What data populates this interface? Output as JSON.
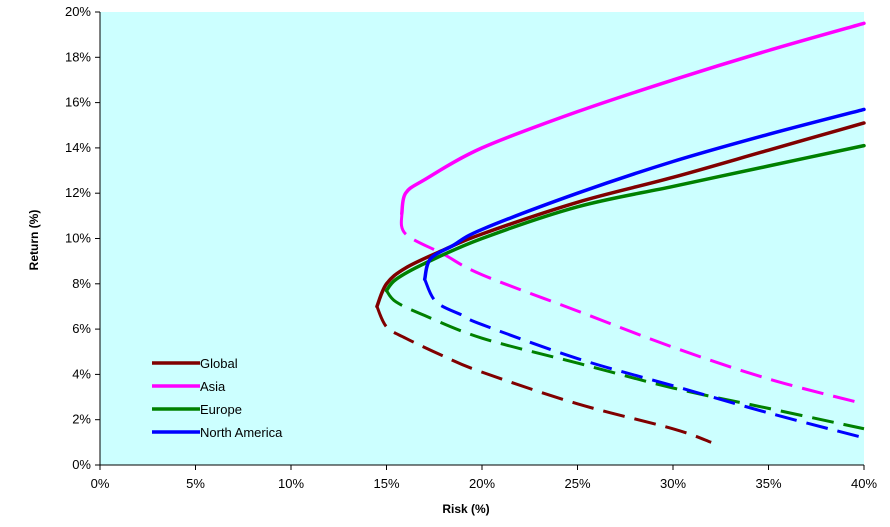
{
  "chart_data": {
    "type": "line",
    "title": "",
    "xlabel": "Risk (%)",
    "ylabel": "Return (%)",
    "xlim": [
      0,
      40
    ],
    "ylim": [
      0,
      20
    ],
    "x_ticks": [
      "0%",
      "5%",
      "10%",
      "15%",
      "20%",
      "25%",
      "30%",
      "35%",
      "40%"
    ],
    "y_ticks": [
      "0%",
      "2%",
      "4%",
      "6%",
      "8%",
      "10%",
      "12%",
      "14%",
      "16%",
      "18%",
      "20%"
    ],
    "plot_background": "#ccffff",
    "grid": false,
    "legend_position": "bottom-left",
    "note": "Efficient-frontier curves: solid = efficient (upper) branch, dashed = inefficient (lower) branch",
    "series": [
      {
        "name": "Global",
        "color": "#800000",
        "min_risk": 14.5,
        "min_risk_return": 7.0,
        "efficient": [
          [
            14.5,
            7.0
          ],
          [
            15.0,
            8.0
          ],
          [
            16.0,
            8.7
          ],
          [
            18.0,
            9.5
          ],
          [
            20.0,
            10.2
          ],
          [
            25.0,
            11.6
          ],
          [
            30.0,
            12.7
          ],
          [
            35.0,
            13.9
          ],
          [
            40.0,
            15.1
          ]
        ],
        "inefficient": [
          [
            14.5,
            7.0
          ],
          [
            15.0,
            6.1
          ],
          [
            16.0,
            5.6
          ],
          [
            18.0,
            4.8
          ],
          [
            20.0,
            4.1
          ],
          [
            25.0,
            2.7
          ],
          [
            30.0,
            1.6
          ],
          [
            32.0,
            1.0
          ]
        ]
      },
      {
        "name": "Asia",
        "color": "#ff00ff",
        "min_risk": 15.8,
        "min_risk_return": 11.1,
        "efficient": [
          [
            15.8,
            11.1
          ],
          [
            16.0,
            12.0
          ],
          [
            17.0,
            12.6
          ],
          [
            20.0,
            14.0
          ],
          [
            25.0,
            15.6
          ],
          [
            30.0,
            17.0
          ],
          [
            35.0,
            18.3
          ],
          [
            40.0,
            19.5
          ]
        ],
        "inefficient": [
          [
            15.8,
            11.1
          ],
          [
            16.0,
            10.2
          ],
          [
            18.0,
            9.3
          ],
          [
            20.0,
            8.4
          ],
          [
            25.0,
            6.8
          ],
          [
            30.0,
            5.2
          ],
          [
            35.0,
            3.8
          ],
          [
            40.0,
            2.7
          ]
        ]
      },
      {
        "name": "Europe",
        "color": "#008000",
        "min_risk": 15.0,
        "min_risk_return": 7.7,
        "efficient": [
          [
            15.0,
            7.7
          ],
          [
            15.5,
            8.2
          ],
          [
            17.0,
            8.9
          ],
          [
            20.0,
            10.0
          ],
          [
            25.0,
            11.4
          ],
          [
            30.0,
            12.3
          ],
          [
            35.0,
            13.2
          ],
          [
            40.0,
            14.1
          ]
        ],
        "inefficient": [
          [
            15.0,
            7.7
          ],
          [
            15.5,
            7.2
          ],
          [
            17.0,
            6.6
          ],
          [
            20.0,
            5.6
          ],
          [
            25.0,
            4.5
          ],
          [
            30.0,
            3.4
          ],
          [
            35.0,
            2.5
          ],
          [
            40.0,
            1.6
          ]
        ]
      },
      {
        "name": "North America",
        "color": "#0000ff",
        "min_risk": 17.0,
        "min_risk_return": 8.2,
        "efficient": [
          [
            17.0,
            8.2
          ],
          [
            17.3,
            9.1
          ],
          [
            18.5,
            9.7
          ],
          [
            20.0,
            10.4
          ],
          [
            25.0,
            12.0
          ],
          [
            30.0,
            13.4
          ],
          [
            35.0,
            14.6
          ],
          [
            40.0,
            15.7
          ]
        ],
        "inefficient": [
          [
            17.0,
            8.2
          ],
          [
            17.6,
            7.2
          ],
          [
            19.0,
            6.6
          ],
          [
            20.0,
            6.2
          ],
          [
            25.0,
            4.7
          ],
          [
            30.0,
            3.5
          ],
          [
            35.0,
            2.3
          ],
          [
            40.0,
            1.2
          ]
        ]
      }
    ]
  }
}
